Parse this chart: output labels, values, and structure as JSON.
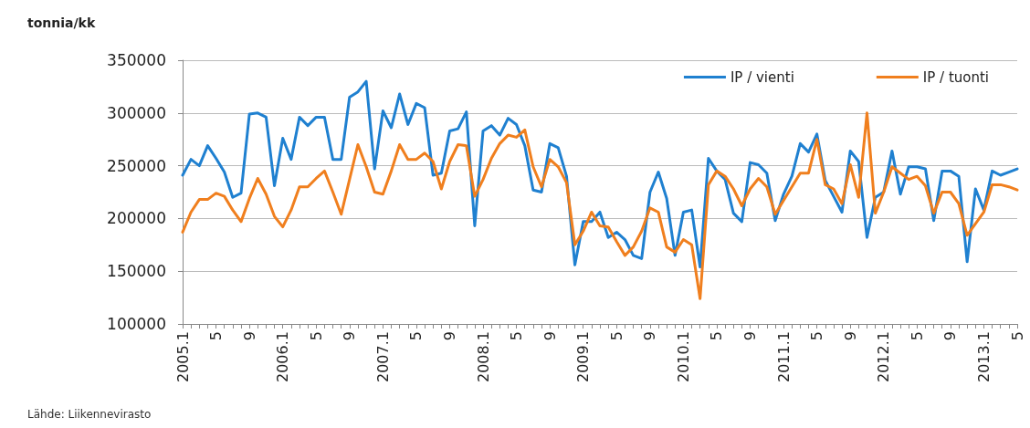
{
  "chart_data": {
    "type": "line",
    "ylabel": "tonnia/kk",
    "categories": [
      "2005.1",
      null,
      null,
      null,
      "5",
      null,
      null,
      null,
      "9",
      null,
      null,
      null,
      "2006.1",
      null,
      null,
      null,
      "5",
      null,
      null,
      null,
      "9",
      null,
      null,
      null,
      "2007.1",
      null,
      null,
      null,
      "5",
      null,
      null,
      null,
      "9",
      null,
      null,
      null,
      "2008.1",
      null,
      null,
      null,
      "5",
      null,
      null,
      null,
      "9",
      null,
      null,
      null,
      "2009.1",
      null,
      null,
      null,
      "5",
      null,
      null,
      null,
      "9",
      null,
      null,
      null,
      "2010.1",
      null,
      null,
      null,
      "5",
      null,
      null,
      null,
      "9",
      null,
      null,
      null,
      "2011.1",
      null,
      null,
      null,
      "5",
      null,
      null,
      null,
      "9",
      null,
      null,
      null,
      "2012.1",
      null,
      null,
      null,
      "5",
      null,
      null,
      null,
      "9",
      null,
      null,
      null,
      "2013.1",
      null,
      null,
      null,
      "5"
    ],
    "series": [
      {
        "name": "IP / vienti",
        "color": "#1f80d0",
        "values": [
          241000,
          256000,
          250000,
          269000,
          257000,
          244000,
          220000,
          224000,
          299000,
          300000,
          296000,
          231000,
          276000,
          256000,
          296000,
          288000,
          296000,
          296000,
          256000,
          256000,
          315000,
          320000,
          330000,
          247000,
          302000,
          286000,
          318000,
          289000,
          309000,
          305000,
          241000,
          243000,
          283000,
          285000,
          301000,
          193000,
          283000,
          288000,
          279000,
          295000,
          289000,
          269000,
          227000,
          225000,
          271000,
          267000,
          240000,
          156000,
          197000,
          197000,
          206000,
          182000,
          187000,
          180000,
          165000,
          162000,
          225000,
          244000,
          219000,
          165000,
          206000,
          208000,
          154000,
          257000,
          245000,
          237000,
          205000,
          197000,
          253000,
          251000,
          243000,
          198000,
          223000,
          240000,
          271000,
          263000,
          280000,
          236000,
          221000,
          206000,
          264000,
          254000,
          182000,
          220000,
          225000,
          264000,
          223000,
          249000,
          249000,
          247000,
          198000,
          245000,
          245000,
          240000,
          159000,
          228000,
          208000,
          245000,
          241000,
          244000,
          247000
        ]
      },
      {
        "name": "IP / tuonti",
        "color": "#f07f1e",
        "values": [
          187000,
          206000,
          218000,
          218000,
          224000,
          221000,
          208000,
          197000,
          219000,
          238000,
          223000,
          202000,
          192000,
          208000,
          230000,
          230000,
          238000,
          245000,
          225000,
          204000,
          237000,
          270000,
          249000,
          225000,
          223000,
          245000,
          270000,
          256000,
          256000,
          262000,
          254000,
          228000,
          254000,
          270000,
          269000,
          221000,
          237000,
          257000,
          271000,
          279000,
          277000,
          284000,
          249000,
          230000,
          256000,
          249000,
          234000,
          175000,
          188000,
          206000,
          193000,
          192000,
          178000,
          165000,
          173000,
          188000,
          210000,
          206000,
          173000,
          168000,
          180000,
          175000,
          124000,
          232000,
          245000,
          240000,
          228000,
          212000,
          228000,
          238000,
          230000,
          204000,
          217000,
          230000,
          243000,
          243000,
          275000,
          232000,
          228000,
          214000,
          251000,
          220000,
          300000,
          205000,
          225000,
          249000,
          243000,
          237000,
          240000,
          231000,
          205000,
          225000,
          225000,
          214000,
          184000,
          195000,
          206000,
          232000,
          232000,
          230000,
          227000
        ]
      }
    ],
    "ylim": [
      100000,
      350000
    ],
    "yticks": [
      100000,
      150000,
      200000,
      250000,
      300000,
      350000
    ],
    "grid": "y",
    "legend": "top right",
    "marker": "none",
    "line_style": "solid",
    "annotations": [
      "Lähde: Liikennevirasto"
    ]
  }
}
